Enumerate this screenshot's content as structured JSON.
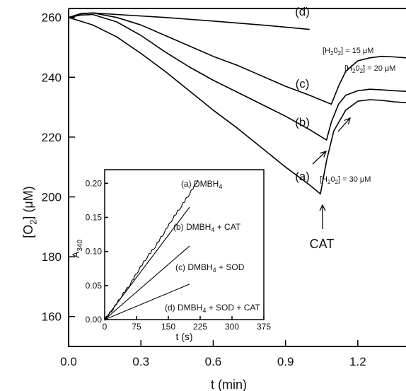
{
  "chart_data": [
    {
      "type": "line",
      "xlabel": "t (min)",
      "ylabel": "[O2] (μM)",
      "ylabel_parts": {
        "main": "[O",
        "sub": "2",
        "rest": "] (μM)"
      },
      "xlim": [
        0.0,
        1.4
      ],
      "ylim": [
        150,
        263
      ],
      "x_ticks": [
        0.0,
        0.3,
        0.6,
        0.9,
        1.2
      ],
      "x_tick_labels": [
        "0.0",
        "0.3",
        "0.6",
        "0.9",
        "1.2"
      ],
      "y_ticks": [
        160,
        180,
        200,
        220,
        240,
        260
      ],
      "y_tick_labels": [
        "160",
        "180",
        "200",
        "220",
        "240",
        "260"
      ],
      "series": [
        {
          "name": "(d)",
          "x": [
            0.0,
            0.05,
            0.1,
            0.2,
            0.4,
            0.6,
            0.8,
            1.0
          ],
          "y": [
            260,
            261.3,
            261.5,
            261,
            260,
            258.8,
            257.5,
            256
          ]
        },
        {
          "name": "(c)",
          "x": [
            0.0,
            0.05,
            0.1,
            0.2,
            0.3,
            0.4,
            0.5,
            0.6,
            0.7,
            0.8,
            0.9,
            1.0,
            1.09,
            1.12,
            1.15,
            1.2,
            1.25,
            1.3,
            1.35,
            1.4
          ],
          "y": [
            260,
            261.2,
            261.5,
            260,
            257.5,
            254,
            250.5,
            247,
            244,
            240.5,
            237,
            234,
            231,
            237,
            242,
            245.5,
            246.5,
            247,
            246.8,
            246.5
          ]
        },
        {
          "name": "(b)",
          "x": [
            0.0,
            0.05,
            0.1,
            0.2,
            0.3,
            0.4,
            0.5,
            0.6,
            0.7,
            0.8,
            0.9,
            1.0,
            1.07,
            1.09,
            1.12,
            1.15,
            1.2,
            1.25,
            1.3,
            1.35,
            1.4
          ],
          "y": [
            260,
            260.8,
            261,
            258.5,
            254,
            248.5,
            243.5,
            239,
            235,
            231,
            227,
            222.5,
            219,
            225,
            231,
            234,
            235.5,
            236,
            235.8,
            235.5,
            235.3
          ]
        },
        {
          "name": "(a)",
          "x": [
            0.0,
            0.1,
            0.2,
            0.3,
            0.4,
            0.5,
            0.6,
            0.7,
            0.8,
            0.9,
            1.0,
            1.045,
            1.07,
            1.1,
            1.15,
            1.2,
            1.25,
            1.3,
            1.35,
            1.4
          ],
          "y": [
            260,
            257.5,
            253.5,
            248,
            242,
            235.5,
            229,
            223,
            216.5,
            210,
            204,
            201,
            212,
            222,
            229,
            232,
            232.5,
            232.3,
            231.8,
            231.5
          ]
        }
      ],
      "curve_labels": [
        "(d)",
        "(c)",
        "(b)",
        "(a)"
      ],
      "annotations": {
        "h2o2_15": {
          "pre": "[H",
          "sub1": "2",
          "mid": "0",
          "sub2": "2",
          "post": "] = 15 μM"
        },
        "h2o2_20": {
          "pre": "[H",
          "sub1": "2",
          "mid": "0",
          "sub2": "2",
          "post": "] = 20 μM"
        },
        "h2o2_30": {
          "pre": "[H",
          "sub1": "2",
          "mid": "0",
          "sub2": "2",
          "post": "] = 30 μM"
        },
        "cat": "CAT"
      }
    },
    {
      "type": "line",
      "xlabel": "t (s)",
      "ylabel": "A340",
      "ylabel_parts": {
        "main": "A",
        "sub": "340"
      },
      "xlim": [
        0,
        375
      ],
      "ylim": [
        0.0,
        0.22
      ],
      "x_ticks": [
        0,
        75,
        150,
        225,
        300,
        375
      ],
      "x_tick_labels": [
        "0",
        "75",
        "150",
        "225",
        "300",
        "375"
      ],
      "y_ticks": [
        0.0,
        0.05,
        0.1,
        0.15,
        0.2
      ],
      "y_tick_labels": [
        "0.00",
        "0.05",
        "0.10",
        "0.15",
        "0.20"
      ],
      "series": [
        {
          "name": "(a) DMBH4",
          "x": [
            0,
            20,
            40,
            60,
            80,
            100,
            120,
            140,
            160,
            180,
            200,
            220
          ],
          "y": [
            0.0,
            0.016,
            0.035,
            0.052,
            0.073,
            0.092,
            0.108,
            0.128,
            0.148,
            0.166,
            0.185,
            0.205
          ]
        },
        {
          "name": "(b) DMBH4 + CAT",
          "x": [
            0,
            200
          ],
          "y": [
            0.0,
            0.165
          ]
        },
        {
          "name": "(c) DMBH4 + SOD",
          "x": [
            0,
            200
          ],
          "y": [
            0.0,
            0.108
          ]
        },
        {
          "name": "(d) DMBH4 + SOD + CAT",
          "x": [
            0,
            200
          ],
          "y": [
            0.0,
            0.052
          ]
        }
      ],
      "legend_labels": [
        {
          "pre": "(a) DMBH",
          "sub": "4",
          "post": ""
        },
        {
          "pre": "(b) DMBH",
          "sub": "4",
          "post": " + CAT"
        },
        {
          "pre": "(c) DMBH",
          "sub": "4",
          "post": " + SOD"
        },
        {
          "pre": "(d) DMBH",
          "sub": "4",
          "post": " + SOD + CAT"
        }
      ]
    }
  ]
}
